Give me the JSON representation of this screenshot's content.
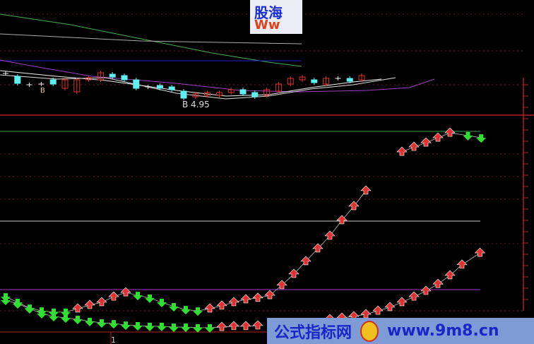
{
  "watermark_top": {
    "line1": "股海",
    "line2": "Ww"
  },
  "watermark_bottom": {
    "name": "公式指标网",
    "url": "www.9m8.cn"
  },
  "colors": {
    "up": "#e0302a",
    "down": "#5ef0f0",
    "arrow_up": "#e03030",
    "arrow_down": "#30e030",
    "ma_green": "#4caf50",
    "ma_gray": "#aaaaaa",
    "ma_blue": "#2020d0",
    "ma_purple": "#a040c0",
    "grid_red": "#b02020"
  },
  "chart_data": [
    {
      "type": "candlestick",
      "low_label": "4.95",
      "low_marker": "B",
      "marker_b": "B",
      "candles": [
        {
          "i": 0,
          "t": 5.39,
          "b": 5.39,
          "up": true
        },
        {
          "i": 1,
          "t": 5.35,
          "b": 5.25,
          "up": false
        },
        {
          "i": 2,
          "t": 5.23,
          "b": 5.23,
          "up": true
        },
        {
          "i": 3,
          "t": 5.24,
          "b": 5.24,
          "up": true
        },
        {
          "i": 4,
          "t": 5.3,
          "b": 5.24,
          "up": false
        },
        {
          "i": 5,
          "t": 5.3,
          "b": 5.18,
          "up": true
        },
        {
          "i": 6,
          "t": 5.3,
          "b": 5.13,
          "up": true
        },
        {
          "i": 7,
          "t": 5.33,
          "b": 5.3,
          "up": true
        },
        {
          "i": 8,
          "t": 5.4,
          "b": 5.3,
          "up": true
        },
        {
          "i": 9,
          "t": 5.38,
          "b": 5.34,
          "up": false
        },
        {
          "i": 10,
          "t": 5.36,
          "b": 5.3,
          "up": false
        },
        {
          "i": 11,
          "t": 5.3,
          "b": 5.18,
          "up": false
        },
        {
          "i": 12,
          "t": 5.2,
          "b": 5.2,
          "up": true
        },
        {
          "i": 13,
          "t": 5.22,
          "b": 5.18,
          "up": false
        },
        {
          "i": 14,
          "t": 5.2,
          "b": 5.16,
          "up": false
        },
        {
          "i": 15,
          "t": 5.14,
          "b": 5.04,
          "up": false
        },
        {
          "i": 16,
          "t": 5.1,
          "b": 5.06,
          "up": true
        },
        {
          "i": 17,
          "t": 5.12,
          "b": 5.08,
          "up": true
        },
        {
          "i": 18,
          "t": 5.12,
          "b": 5.08,
          "up": true
        },
        {
          "i": 19,
          "t": 5.16,
          "b": 5.12,
          "up": true
        },
        {
          "i": 20,
          "t": 5.16,
          "b": 5.1,
          "up": false
        },
        {
          "i": 21,
          "t": 5.12,
          "b": 5.06,
          "up": false
        },
        {
          "i": 22,
          "t": 5.16,
          "b": 5.08,
          "up": true
        },
        {
          "i": 23,
          "t": 5.24,
          "b": 5.14,
          "up": true
        },
        {
          "i": 24,
          "t": 5.32,
          "b": 5.24,
          "up": true
        },
        {
          "i": 25,
          "t": 5.34,
          "b": 5.3,
          "up": true
        },
        {
          "i": 26,
          "t": 5.3,
          "b": 5.26,
          "up": false
        },
        {
          "i": 27,
          "t": 5.32,
          "b": 5.24,
          "up": true
        },
        {
          "i": 28,
          "t": 5.32,
          "b": 5.32,
          "up": true
        },
        {
          "i": 29,
          "t": 5.32,
          "b": 5.28,
          "up": false
        },
        {
          "i": 30,
          "t": 5.36,
          "b": 5.3,
          "up": true
        }
      ]
    },
    {
      "type": "indicator-arrows",
      "x_tick_label": "1",
      "series": [
        {
          "points": [
            [
              0,
              17.2,
              "d"
            ],
            [
              1,
              14.5,
              "d"
            ],
            [
              2,
              11.7,
              "d"
            ],
            [
              3,
              10.3,
              "d"
            ],
            [
              4,
              9.7,
              "d"
            ],
            [
              5,
              9.7,
              "d"
            ],
            [
              6,
              11.4,
              "u"
            ],
            [
              7,
              13.1,
              "u"
            ],
            [
              8,
              14.5,
              "u"
            ],
            [
              9,
              17.2,
              "u"
            ],
            [
              10,
              19.3,
              "u"
            ],
            [
              11,
              17.9,
              "d"
            ],
            [
              12,
              16.6,
              "d"
            ],
            [
              13,
              14.5,
              "d"
            ],
            [
              14,
              12.4,
              "d"
            ],
            [
              15,
              11.0,
              "d"
            ],
            [
              16,
              10.3,
              "d"
            ],
            [
              17,
              11.4,
              "u"
            ],
            [
              18,
              12.8,
              "u"
            ],
            [
              19,
              14.5,
              "u"
            ],
            [
              20,
              15.9,
              "u"
            ],
            [
              21,
              16.6,
              "u"
            ],
            [
              22,
              17.9,
              "u"
            ],
            [
              23,
              22.8,
              "u"
            ],
            [
              24,
              28.3,
              "u"
            ],
            [
              25,
              34.5,
              "u"
            ],
            [
              26,
              40.7,
              "u"
            ],
            [
              27,
              46.9,
              "u"
            ],
            [
              28,
              54.5,
              "u"
            ],
            [
              29,
              61.4,
              "u"
            ],
            [
              30,
              69.0,
              "u"
            ],
            [
              33,
              87.9,
              "u"
            ],
            [
              34,
              90.3,
              "u"
            ],
            [
              35,
              92.4,
              "u"
            ],
            [
              36,
              94.8,
              "u"
            ],
            [
              37,
              97.2,
              "u"
            ],
            [
              38.5,
              95.9,
              "d"
            ],
            [
              39.6,
              94.8,
              "d"
            ]
          ]
        },
        {
          "points": [
            [
              0,
              15.5,
              "d"
            ],
            [
              1,
              13.8,
              "d"
            ],
            [
              2,
              11.4,
              "d"
            ],
            [
              3,
              9.0,
              "d"
            ],
            [
              4,
              7.6,
              "d"
            ],
            [
              5,
              6.9,
              "d"
            ],
            [
              6,
              6.2,
              "d"
            ],
            [
              7,
              5.2,
              "d"
            ],
            [
              8,
              4.5,
              "d"
            ],
            [
              9,
              4.1,
              "d"
            ],
            [
              10,
              3.4,
              "d"
            ],
            [
              11,
              3.1,
              "d"
            ],
            [
              12,
              2.8,
              "d"
            ],
            [
              13,
              2.8,
              "d"
            ],
            [
              14,
              2.4,
              "d"
            ],
            [
              15,
              2.4,
              "d"
            ],
            [
              16,
              2.1,
              "d"
            ],
            [
              17,
              2.1,
              "d"
            ],
            [
              18,
              2.4,
              "u"
            ],
            [
              19,
              2.8,
              "u"
            ],
            [
              20,
              2.8,
              "u"
            ],
            [
              21,
              3.1,
              "u"
            ],
            [
              27,
              6.2,
              "u"
            ],
            [
              28,
              6.9,
              "u"
            ],
            [
              29,
              7.6,
              "u"
            ],
            [
              30,
              8.6,
              "u"
            ],
            [
              31,
              10.3,
              "u"
            ],
            [
              32,
              12.1,
              "u"
            ],
            [
              33,
              14.5,
              "u"
            ],
            [
              34,
              17.2,
              "u"
            ],
            [
              35,
              20.0,
              "u"
            ],
            [
              36,
              23.4,
              "u"
            ],
            [
              37,
              27.6,
              "u"
            ],
            [
              38,
              32.8,
              "u"
            ],
            [
              39.5,
              38.6,
              "u"
            ]
          ]
        }
      ]
    }
  ]
}
